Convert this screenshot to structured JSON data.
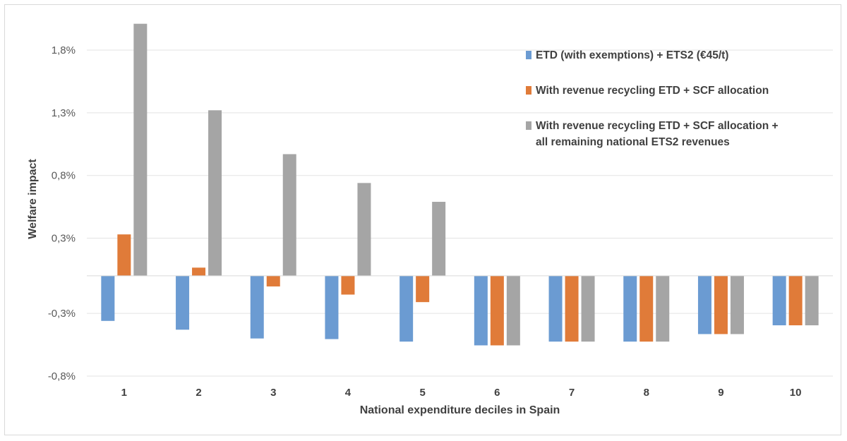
{
  "chart_data": {
    "type": "bar",
    "xlabel": "National expenditure deciles in Spain",
    "ylabel": "Welfare impact",
    "ylim": [
      -0.8,
      2.0
    ],
    "yticks": [
      -0.8,
      -0.3,
      0.3,
      0.8,
      1.3,
      1.8
    ],
    "ytick_labels": [
      "-0,8%",
      "-0,3%",
      "0,3%",
      "0,8%",
      "1,3%",
      "1,8%"
    ],
    "grid": true,
    "legend_position": "top-right",
    "categories": [
      "1",
      "2",
      "3",
      "4",
      "5",
      "6",
      "7",
      "8",
      "9",
      "10"
    ],
    "series": [
      {
        "name": "ETD (with exemptions) + ETS2 (€45/t)",
        "color": "#6b9bd2",
        "values": [
          -0.36,
          -0.43,
          -0.5,
          -0.505,
          -0.525,
          -0.555,
          -0.525,
          -0.525,
          -0.465,
          -0.395
        ]
      },
      {
        "name": "With revenue recycling ETD + SCF allocation",
        "color": "#e07b39",
        "values": [
          0.33,
          0.065,
          -0.085,
          -0.15,
          -0.21,
          -0.555,
          -0.525,
          -0.525,
          -0.465,
          -0.395
        ]
      },
      {
        "name_lines": [
          "With revenue recycling ETD + SCF allocation +",
          "all remaining national ETS2 revenues"
        ],
        "color": "#a5a5a5",
        "values": [
          2.01,
          1.32,
          0.97,
          0.74,
          0.59,
          -0.555,
          -0.525,
          -0.525,
          -0.465,
          -0.395
        ]
      }
    ]
  }
}
